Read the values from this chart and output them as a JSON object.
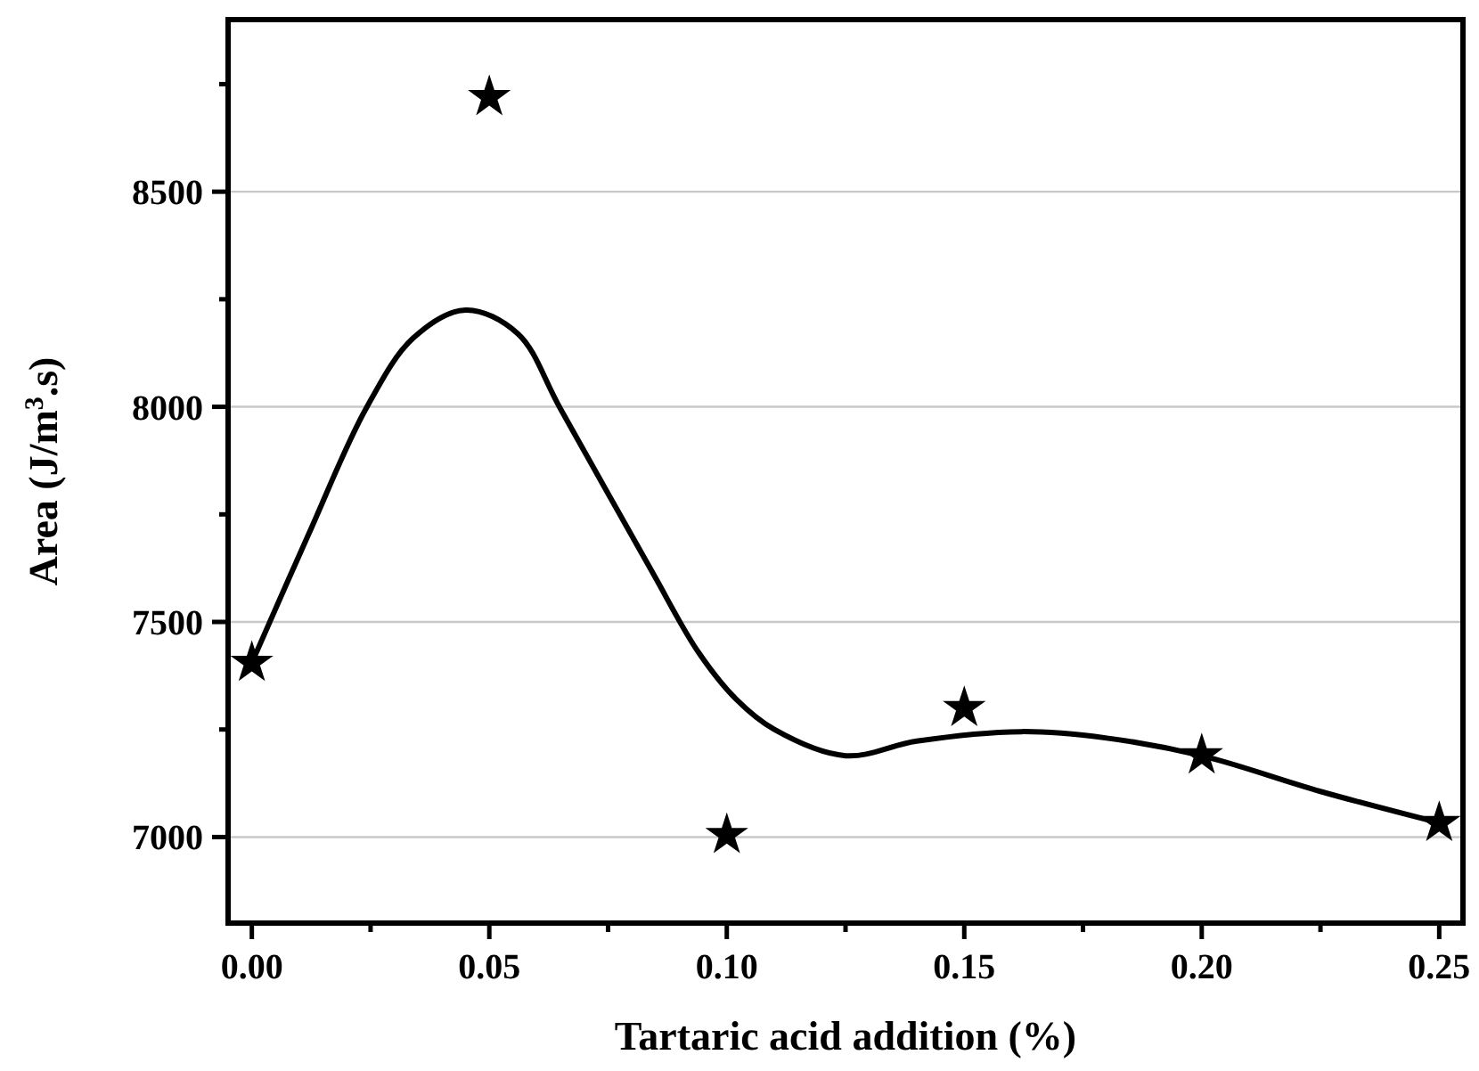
{
  "chart_data": {
    "type": "scatter",
    "xlabel": "Tartaric acid addition (%)",
    "ylabel": "Area (J/m$^{3}$.s)",
    "xlim": [
      -0.005,
      0.255
    ],
    "ylim": [
      6800,
      8900
    ],
    "xticks": [
      {
        "value": 0,
        "label": "0.00"
      },
      {
        "value": 0.025,
        "label": null
      },
      {
        "value": 0.05,
        "label": "0.05"
      },
      {
        "value": 0.075,
        "label": null
      },
      {
        "value": 0.1,
        "label": "0.10"
      },
      {
        "value": 0.125,
        "label": null
      },
      {
        "value": 0.15,
        "label": "0.15"
      },
      {
        "value": 0.175,
        "label": null
      },
      {
        "value": 0.2,
        "label": "0.20"
      },
      {
        "value": 0.225,
        "label": null
      },
      {
        "value": 0.25,
        "label": "0.25"
      }
    ],
    "yticks": [
      7000,
      {
        "value": 7250,
        "label": null
      },
      7500,
      {
        "value": 7750,
        "label": null
      },
      8000,
      {
        "value": 8250,
        "label": null
      },
      8500,
      {
        "value": 8750,
        "label": null
      }
    ],
    "grid": "y",
    "series": [
      {
        "color": "#000000",
        "marker": "star",
        "x": [
          0,
          0.05,
          0.1,
          0.15,
          0.2,
          0.25
        ],
        "values": [
          7405,
          8720,
          7005,
          7300,
          7190,
          7033
        ]
      },
      {
        "type": "line",
        "color": "#000000",
        "marker": "none",
        "line_style": "solid",
        "x": [
          0,
          0.012,
          0.024,
          0.034,
          0.045,
          0.056,
          0.065,
          0.084,
          0.094,
          0.102,
          0.11,
          0.125,
          0.14,
          0.162,
          0.18,
          0.2,
          0.225,
          0.25
        ],
        "values": [
          7405,
          7705,
          7995,
          8160,
          8225,
          8170,
          7995,
          7622,
          7430,
          7320,
          7250,
          7189,
          7223,
          7245,
          7230,
          7189,
          7106,
          7033
        ]
      }
    ]
  }
}
